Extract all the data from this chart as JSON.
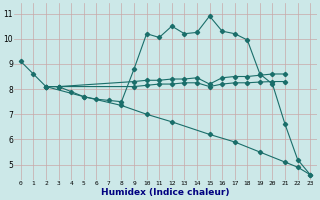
{
  "xlabel": "Humidex (Indice chaleur)",
  "bg_color": "#cce8e8",
  "line_color": "#1a6e6a",
  "grid_color": "#c8a8a8",
  "xlim": [
    -0.5,
    23.5
  ],
  "ylim": [
    4.4,
    11.4
  ],
  "xticks": [
    0,
    1,
    2,
    3,
    4,
    5,
    6,
    7,
    8,
    9,
    10,
    11,
    12,
    13,
    14,
    15,
    16,
    17,
    18,
    19,
    20,
    21,
    22,
    23
  ],
  "yticks": [
    5,
    6,
    7,
    8,
    9,
    10,
    11
  ],
  "line1_x": [
    0,
    1,
    2,
    3,
    4,
    5,
    6,
    7,
    8,
    9,
    10,
    11,
    12,
    13,
    14,
    15,
    16,
    17,
    18,
    19,
    20,
    21,
    22,
    23
  ],
  "line1_y": [
    9.1,
    8.6,
    8.1,
    8.1,
    7.9,
    7.7,
    7.6,
    7.55,
    7.5,
    8.8,
    10.2,
    10.05,
    10.5,
    10.2,
    10.25,
    10.9,
    10.3,
    10.2,
    9.95,
    8.6,
    8.2,
    6.6,
    5.2,
    4.6
  ],
  "line2_x": [
    2,
    3,
    9,
    10,
    11,
    12,
    13,
    14,
    15,
    16,
    17,
    18,
    19,
    20,
    21
  ],
  "line2_y": [
    8.1,
    8.1,
    8.3,
    8.35,
    8.35,
    8.4,
    8.4,
    8.45,
    8.2,
    8.45,
    8.5,
    8.5,
    8.55,
    8.6,
    8.6
  ],
  "line3_x": [
    2,
    3,
    9,
    10,
    11,
    12,
    13,
    14,
    15,
    16,
    17,
    18,
    19,
    20,
    21
  ],
  "line3_y": [
    8.1,
    8.1,
    8.1,
    8.15,
    8.2,
    8.2,
    8.25,
    8.25,
    8.1,
    8.2,
    8.25,
    8.25,
    8.28,
    8.3,
    8.3
  ],
  "line4_x": [
    2,
    5,
    8,
    10,
    12,
    15,
    17,
    19,
    21,
    22,
    23
  ],
  "line4_y": [
    8.1,
    7.7,
    7.35,
    7.0,
    6.7,
    6.2,
    5.9,
    5.5,
    5.1,
    4.9,
    4.6
  ]
}
